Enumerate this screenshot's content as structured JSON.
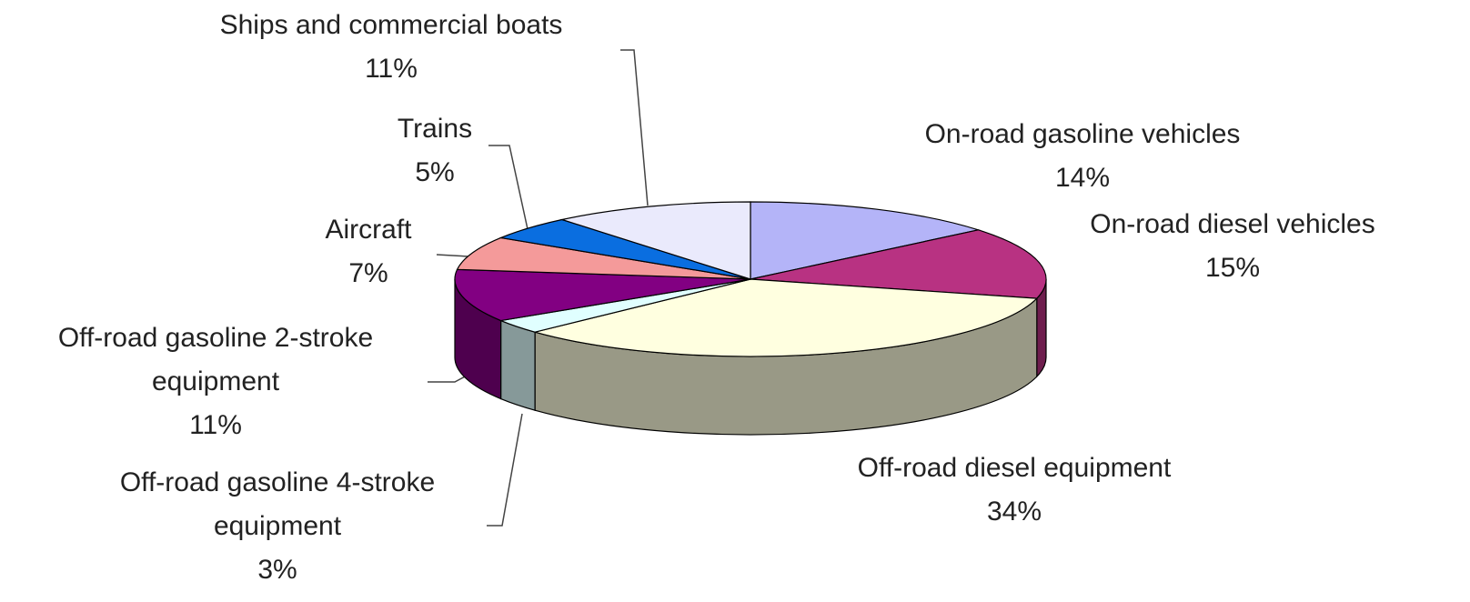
{
  "chart_data": {
    "type": "pie3d",
    "categories": [
      "On-road gasoline vehicles",
      "On-road diesel vehicles",
      "Off-road diesel equipment",
      "Off-road gasoline 4-stroke equipment",
      "Off-road gasoline 2-stroke equipment",
      "Aircraft",
      "Trains",
      "Ships and commercial boats"
    ],
    "values": [
      14,
      15,
      34,
      3,
      11,
      7,
      5,
      11
    ],
    "value_labels": [
      "14%",
      "15%",
      "34%",
      "3%",
      "11%",
      "7%",
      "5%",
      "11%"
    ],
    "colors": [
      "#b4b4f8",
      "#b83282",
      "#ffffe0",
      "#e0ffff",
      "#820082",
      "#f49a9a",
      "#0a6ee0",
      "#eaeafc"
    ]
  }
}
